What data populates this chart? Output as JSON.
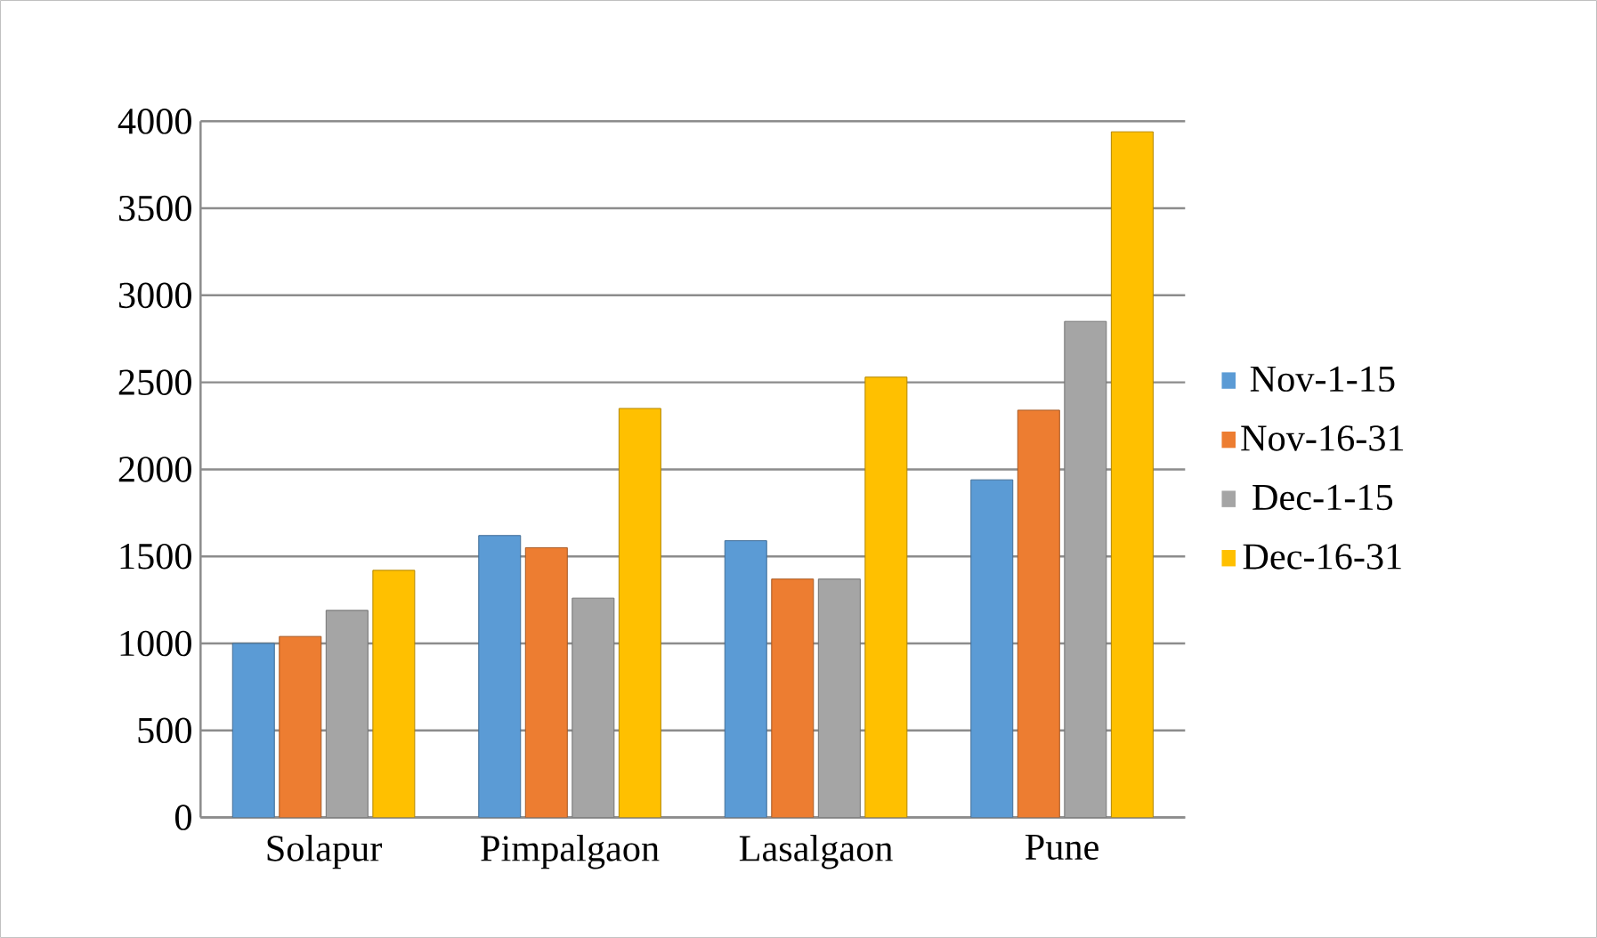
{
  "chart_data": {
    "type": "bar",
    "categories": [
      "Solapur",
      "Pimpalgaon",
      "Lasalgaon",
      "Pune"
    ],
    "series": [
      {
        "name": "Nov-1-15",
        "color": "#5b9bd5",
        "values": [
          1000,
          1620,
          1590,
          1940
        ]
      },
      {
        "name": "Nov-16-31",
        "color": "#ed7d31",
        "values": [
          1040,
          1550,
          1370,
          2340
        ]
      },
      {
        "name": "Dec-1-15",
        "color": "#a5a5a5",
        "values": [
          1190,
          1260,
          1370,
          2850
        ]
      },
      {
        "name": "Dec-16-31",
        "color": "#ffc000",
        "values": [
          1420,
          2350,
          2530,
          3940
        ]
      }
    ],
    "ylim": [
      0,
      4000
    ],
    "yticks": [
      0,
      500,
      1000,
      1500,
      2000,
      2500,
      3000,
      3500,
      4000
    ],
    "grid": "y",
    "legend": "right"
  }
}
